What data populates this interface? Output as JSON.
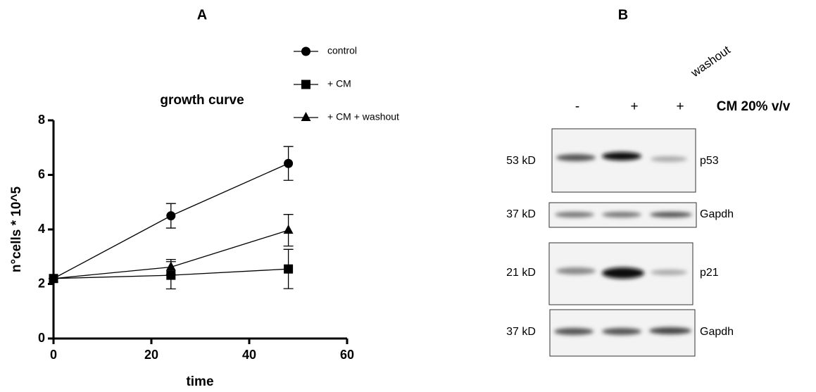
{
  "panel_labels": [
    "A",
    "B"
  ],
  "chart_data": {
    "type": "line",
    "title": "growth curve",
    "x_label": "time",
    "y_label": "n°cells * 10^5",
    "x": [
      0,
      24,
      48
    ],
    "series": [
      {
        "name": "control",
        "color": "#000000",
        "marker": "circle",
        "values": [
          2.2,
          4.5,
          6.42
        ],
        "errors": [
          0,
          0.45,
          0.62
        ]
      },
      {
        "name": "+ CM",
        "color": "#000000",
        "marker": "square",
        "values": [
          2.2,
          2.32,
          2.55
        ],
        "errors": [
          0,
          0.5,
          0.72
        ]
      },
      {
        "name": "+ CM + washout",
        "color": "#000000",
        "marker": "triangle",
        "values": [
          2.2,
          2.62,
          3.97
        ],
        "errors": [
          0,
          0.28,
          0.58
        ]
      }
    ],
    "xlim": [
      0,
      60
    ],
    "xticks": [
      0,
      20,
      40,
      60
    ],
    "ylim": [
      0,
      8
    ],
    "yticks": [
      0,
      2,
      4,
      6,
      8
    ],
    "grid": false
  },
  "blot": {
    "condition_label": "CM 20% v/v",
    "lane_labels": [
      "-",
      "+",
      "+"
    ],
    "lane_annotation": "washout",
    "rows": [
      {
        "size": "53 kD",
        "protein": "p53"
      },
      {
        "size": "37 kD",
        "protein": "Gapdh"
      },
      {
        "size": "21 kD",
        "protein": "p21"
      },
      {
        "size": "37 kD",
        "protein": "Gapdh"
      }
    ]
  }
}
